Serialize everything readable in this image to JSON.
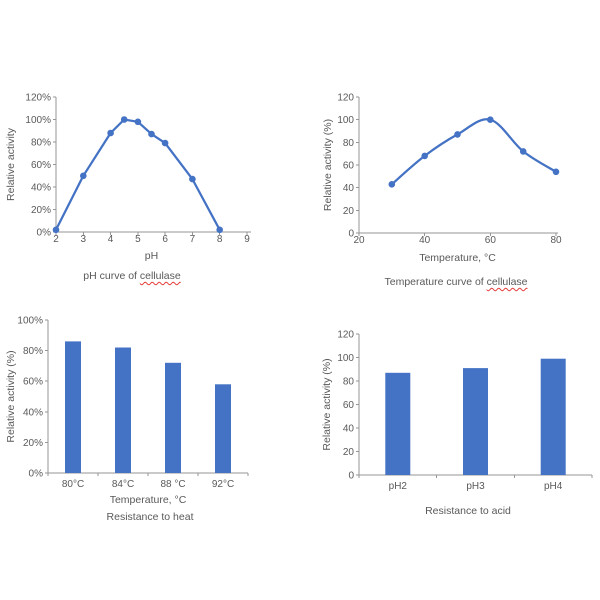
{
  "colors": {
    "series": "#4472C4",
    "axis": "#969696",
    "text": "#595959",
    "squiggle": "#e53935"
  },
  "chart_data": [
    {
      "id": "ph-curve",
      "type": "line",
      "smooth": false,
      "x": [
        2,
        3,
        4,
        4.5,
        5,
        5.5,
        6,
        7,
        8
      ],
      "values": [
        2,
        50,
        88,
        100,
        98,
        87,
        79,
        47,
        2
      ],
      "xticks": [
        2,
        3,
        4,
        5,
        6,
        7,
        8,
        9
      ],
      "xlim": [
        2,
        9
      ],
      "ylim": [
        0,
        120
      ],
      "ytick_step": 20,
      "ytick_suffix": "%",
      "xlabel": "pH",
      "ylabel": "Relative activity",
      "title_prefix": "pH curve of ",
      "title_word": "cellulase",
      "legend": "none",
      "grid": false
    },
    {
      "id": "temperature-curve",
      "type": "line",
      "smooth": true,
      "x": [
        30,
        40,
        50,
        60,
        70,
        80
      ],
      "values": [
        43,
        68,
        87,
        100,
        72,
        54
      ],
      "xticks": [
        20,
        40,
        60,
        80
      ],
      "xlim": [
        20,
        80
      ],
      "ylim": [
        0,
        120
      ],
      "ytick_step": 20,
      "ytick_suffix": "",
      "xlabel": "Temperature, °C",
      "ylabel": "Relative activity (%)",
      "title_prefix": "Temperature curve of ",
      "title_word": "cellulase",
      "legend": "none",
      "grid": false
    },
    {
      "id": "heat-resistance",
      "type": "bar",
      "categories": [
        "80°C",
        "84°C",
        "88 °C",
        "92°C"
      ],
      "values": [
        86,
        82,
        72,
        58
      ],
      "ylim": [
        0,
        100
      ],
      "ytick_step": 20,
      "ytick_suffix": "%",
      "xlabel": "Temperature, °C",
      "ylabel": "Relative activity (%)",
      "title_prefix": "Resistance to heat",
      "title_word": "",
      "legend": "none",
      "grid": false
    },
    {
      "id": "acid-resistance",
      "type": "bar",
      "categories": [
        "pH2",
        "pH3",
        "pH4"
      ],
      "values": [
        87,
        91,
        99
      ],
      "ylim": [
        0,
        120
      ],
      "ytick_step": 20,
      "ytick_suffix": "",
      "xlabel": "",
      "ylabel": "Relative activity (%)",
      "title_prefix": "Resistance to acid",
      "title_word": "",
      "legend": "none",
      "grid": false
    }
  ]
}
